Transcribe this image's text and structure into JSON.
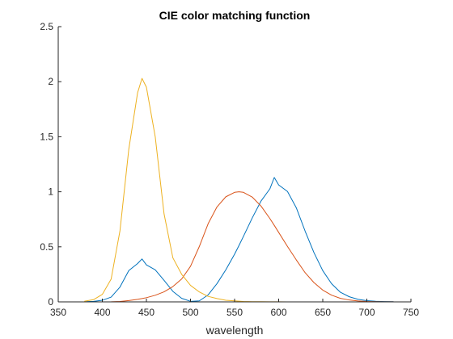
{
  "chart_data": {
    "type": "line",
    "title": "CIE color matching function",
    "xlabel": "wavelength",
    "ylabel": "",
    "xlim": [
      350,
      750
    ],
    "ylim": [
      0,
      2.5
    ],
    "xticks": [
      350,
      400,
      450,
      500,
      550,
      600,
      650,
      700,
      750
    ],
    "yticks": [
      0,
      0.5,
      1,
      1.5,
      2,
      2.5
    ],
    "xtick_labels": [
      "350",
      "400",
      "450",
      "500",
      "550",
      "600",
      "650",
      "700",
      "750"
    ],
    "ytick_labels": [
      "0",
      "0.5",
      "1",
      "1.5",
      "2",
      "2.5"
    ],
    "grid": false,
    "legend": "none",
    "colors": {
      "x_bar": "#0072BD",
      "y_bar": "#D95319",
      "z_bar": "#EDB120",
      "axis": "#262626"
    },
    "x": [
      380,
      390,
      400,
      410,
      420,
      430,
      440,
      445,
      450,
      460,
      470,
      480,
      490,
      500,
      510,
      520,
      530,
      540,
      550,
      555,
      560,
      570,
      580,
      590,
      595,
      600,
      610,
      620,
      630,
      640,
      650,
      660,
      670,
      680,
      690,
      700,
      710,
      720,
      730
    ],
    "series": [
      {
        "key": "x_bar",
        "values": [
          0.0014,
          0.0042,
          0.0143,
          0.0435,
          0.1344,
          0.2839,
          0.3483,
          0.39,
          0.3362,
          0.2908,
          0.1954,
          0.0956,
          0.032,
          0.0049,
          0.0093,
          0.0633,
          0.1655,
          0.2904,
          0.4334,
          0.512,
          0.5945,
          0.7621,
          0.9163,
          1.0263,
          1.13,
          1.0622,
          1.0026,
          0.8544,
          0.6424,
          0.4479,
          0.2835,
          0.1649,
          0.0874,
          0.0468,
          0.0227,
          0.0114,
          0.0058,
          0.0029,
          0.0014
        ]
      },
      {
        "key": "y_bar",
        "values": [
          0.0,
          0.0001,
          0.0004,
          0.0012,
          0.004,
          0.0116,
          0.023,
          0.03,
          0.038,
          0.06,
          0.091,
          0.139,
          0.208,
          0.323,
          0.503,
          0.71,
          0.862,
          0.954,
          0.995,
          1.0,
          0.995,
          0.952,
          0.87,
          0.757,
          0.695,
          0.631,
          0.503,
          0.381,
          0.265,
          0.175,
          0.107,
          0.061,
          0.032,
          0.017,
          0.0082,
          0.0041,
          0.0021,
          0.001,
          0.0005
        ]
      },
      {
        "key": "z_bar",
        "values": [
          0.0065,
          0.0201,
          0.0679,
          0.2074,
          0.6456,
          1.3856,
          1.9,
          2.03,
          1.95,
          1.5,
          0.8,
          0.4,
          0.25,
          0.15,
          0.09,
          0.05,
          0.03,
          0.015,
          0.0087,
          0.006,
          0.0039,
          0.0021,
          0.0017,
          0.0011,
          0.001,
          0.0008,
          0.0003,
          0.0002,
          0.0,
          0.0,
          0.0,
          0.0,
          0.0,
          0.0,
          0.0,
          0.0,
          0.0,
          0.0,
          0.0
        ]
      }
    ]
  }
}
